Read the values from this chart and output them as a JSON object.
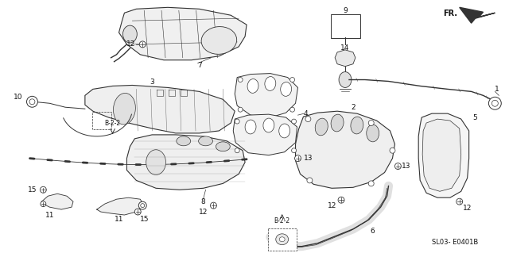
{
  "bg_color": "#ffffff",
  "fig_width": 6.4,
  "fig_height": 3.19,
  "dpi": 100,
  "diagram_code": "SL03- E0401B",
  "fr_label": "FR.",
  "font_size_labels": 7,
  "font_size_code": 6,
  "font_size_fr": 7
}
